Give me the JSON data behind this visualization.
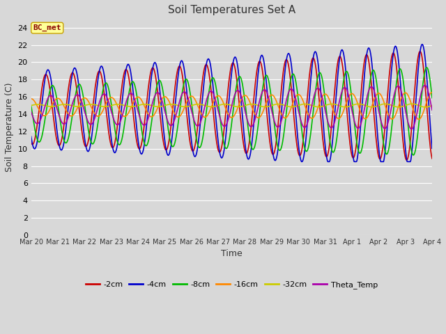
{
  "title": "Soil Temperatures Set A",
  "xlabel": "Time",
  "ylabel": "Soil Temperature (C)",
  "ylim": [
    0,
    25
  ],
  "yticks": [
    0,
    2,
    4,
    6,
    8,
    10,
    12,
    14,
    16,
    18,
    20,
    22,
    24
  ],
  "annotation_text": "BC_met",
  "annotation_bg": "#ffff99",
  "annotation_border": "#c8a000",
  "annotation_text_color": "#8b0000",
  "series": {
    "-2cm": {
      "color": "#cc0000",
      "lw": 1.2
    },
    "-4cm": {
      "color": "#0000cc",
      "lw": 1.2
    },
    "-8cm": {
      "color": "#00bb00",
      "lw": 1.2
    },
    "-16cm": {
      "color": "#ff8800",
      "lw": 1.2
    },
    "-32cm": {
      "color": "#cccc00",
      "lw": 1.2
    },
    "Theta_Temp": {
      "color": "#aa00aa",
      "lw": 1.2
    }
  },
  "bg_color": "#d8d8d8",
  "plot_bg": "#d8d8d8",
  "grid_color": "#ffffff",
  "tick_labels": [
    "Mar 20",
    "Mar 21",
    "Mar 22",
    "Mar 23",
    "Mar 24",
    "Mar 25",
    "Mar 26",
    "Mar 27",
    "Mar 28",
    "Mar 29",
    "Mar 30",
    "Mar 31",
    "Apr 1",
    "Apr 2",
    "Apr 3",
    "Apr 4"
  ],
  "n_days": 15,
  "pts_per_day": 48
}
